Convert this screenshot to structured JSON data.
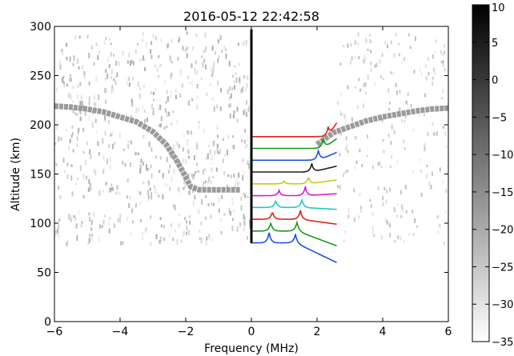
{
  "chart_data": {
    "type": "heatmap",
    "title": "2016-05-12 22:42:58",
    "xlabel": "Frequency (MHz)",
    "ylabel": "Altitude (km)",
    "xlim": [
      -6,
      6
    ],
    "ylim": [
      0,
      300
    ],
    "xticks": [
      -6,
      -4,
      -2,
      0,
      2,
      4,
      6
    ],
    "yticks": [
      0,
      50,
      100,
      150,
      200,
      250,
      300
    ],
    "grid": false,
    "colorbar": {
      "range": [
        -35,
        10
      ],
      "ticks": [
        10,
        5,
        0,
        -5,
        -10,
        -15,
        -20,
        -25,
        -30,
        -35
      ],
      "colormap": "gray_r"
    },
    "echo_trace": {
      "description_free": true,
      "points": [
        [
          -6,
          219
        ],
        [
          -5.5,
          218
        ],
        [
          -5,
          216
        ],
        [
          -4.5,
          213
        ],
        [
          -4,
          208
        ],
        [
          -3.5,
          203
        ],
        [
          -3,
          193
        ],
        [
          -2.6,
          180
        ],
        [
          -2.3,
          165
        ],
        [
          -2.05,
          150
        ],
        [
          -1.85,
          137
        ],
        [
          -1.6,
          134
        ],
        [
          -1.2,
          134
        ],
        [
          -0.8,
          134
        ],
        [
          -0.35,
          134
        ]
      ],
      "points_right": [
        [
          2.0,
          180
        ],
        [
          2.5,
          192
        ],
        [
          3,
          198
        ],
        [
          3.5,
          204
        ],
        [
          4,
          208
        ],
        [
          4.5,
          211
        ],
        [
          5,
          214
        ],
        [
          5.5,
          216
        ],
        [
          6,
          217
        ]
      ]
    },
    "zero_line": {
      "x": 0,
      "y_from": 80,
      "y_to": 297
    },
    "spectra": {
      "x_start": 0,
      "x_end": 2.6,
      "colors": [
        "#1f4fe0",
        "#1a9a1a",
        "#e02020",
        "#20c8c8",
        "#d020d0",
        "#c8c820",
        "#202020",
        "#1f4fe0",
        "#1a9a1a",
        "#e02020"
      ],
      "series": [
        {
          "base": 80,
          "peaks": [
            [
              0.55,
              12
            ],
            [
              1.35,
              10
            ]
          ],
          "tail": -20
        },
        {
          "base": 92,
          "peaks": [
            [
              0.6,
              10
            ],
            [
              1.4,
              11
            ]
          ],
          "tail": -15
        },
        {
          "base": 104,
          "peaks": [
            [
              0.65,
              9
            ],
            [
              1.5,
              10
            ]
          ],
          "tail": -5
        },
        {
          "base": 116,
          "peaks": [
            [
              0.75,
              8
            ],
            [
              1.55,
              9
            ]
          ],
          "tail": -2
        },
        {
          "base": 128,
          "peaks": [
            [
              0.85,
              6
            ],
            [
              1.65,
              10
            ]
          ],
          "tail": 2
        },
        {
          "base": 140,
          "peaks": [
            [
              1.0,
              3
            ],
            [
              1.75,
              8
            ]
          ],
          "tail": 4
        },
        {
          "base": 152,
          "peaks": [
            [
              1.85,
              10
            ]
          ],
          "tail": 6
        },
        {
          "base": 164,
          "peaks": [
            [
              2.05,
              12
            ]
          ],
          "tail": 8
        },
        {
          "base": 176,
          "peaks": [
            [
              2.2,
              12
            ]
          ],
          "tail": 10
        },
        {
          "base": 188,
          "peaks": [
            [
              2.35,
              12
            ]
          ],
          "tail": 14
        }
      ]
    }
  }
}
